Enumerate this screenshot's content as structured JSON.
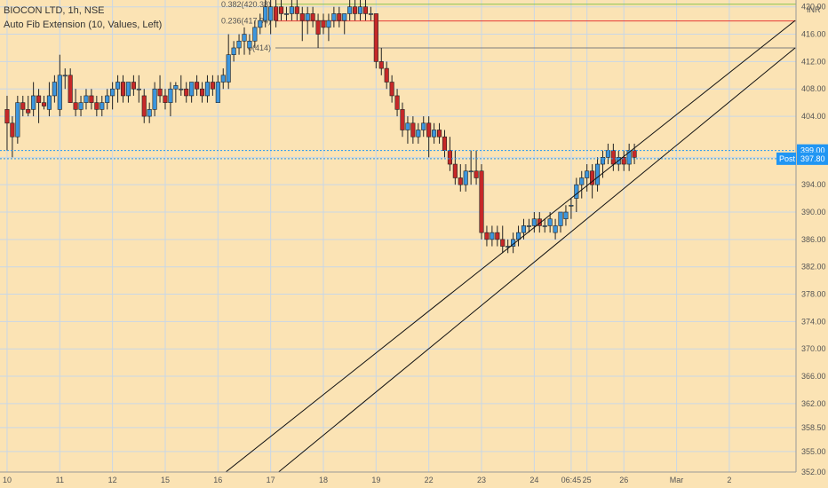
{
  "header": {
    "symbol_line": "BIOCON LTD, 1h, NSE",
    "indicator_line": "Auto Fib Extension (10, Values, Left)"
  },
  "currency": "INR",
  "colors": {
    "background": "#fbe3b4",
    "up": "#3d96dd",
    "down": "#c62828",
    "grid": "#c9d7e6",
    "fib_0382": "#8bc34a",
    "fib_0236": "#e53935",
    "fib_0": "#7d7d7d",
    "tag_blue": "#2196f3",
    "trendline": "#111111"
  },
  "fib_levels": [
    {
      "label": "0.382(420.38)",
      "value": 420.38,
      "color": "#8bc34a"
    },
    {
      "label": "0.236(417.94)",
      "value": 417.94,
      "color": "#e53935"
    },
    {
      "label": "0(414)",
      "value": 414.0,
      "color": "#7d7d7d"
    }
  ],
  "price_tags": [
    {
      "label": "399.00",
      "prefix": "",
      "value": 399.0
    },
    {
      "label": "397.80",
      "prefix": "Post",
      "value": 397.8
    }
  ],
  "chart_data": {
    "type": "candlestick",
    "ylim": [
      352,
      421
    ],
    "y_ticks": [
      352,
      355,
      358.5,
      362,
      366,
      370,
      374,
      378,
      382,
      386,
      390,
      394,
      398,
      404,
      408,
      412,
      416,
      420
    ],
    "y_tick_labels": [
      "352.00",
      "355.00",
      "358.50",
      "362.00",
      "366.00",
      "370.00",
      "374.00",
      "378.00",
      "382.00",
      "386.00",
      "390.00",
      "394.00",
      "398.00",
      "404.00",
      "408.00",
      "412.00",
      "416.00",
      "420.00"
    ],
    "x_tick_labels": [
      "10",
      "11",
      "12",
      "15",
      "16",
      "17",
      "18",
      "19",
      "22",
      "23",
      "24",
      "06:45",
      "25",
      "26",
      "Mar",
      "2"
    ],
    "x_tick_slots": [
      0.5,
      10.5,
      20.5,
      30.5,
      40.5,
      50.5,
      60.5,
      70.5,
      80.5,
      90.5,
      100.5,
      107.5,
      110.5,
      117.5,
      127.5,
      137.5
    ],
    "slot_count": 151,
    "candles": [
      [
        0,
        405,
        407,
        399,
        403
      ],
      [
        1,
        403,
        404,
        398,
        401
      ],
      [
        2,
        401,
        407,
        400,
        406
      ],
      [
        3,
        406,
        407,
        404,
        405
      ],
      [
        4,
        405,
        407,
        404,
        404.5
      ],
      [
        5,
        405,
        409,
        404,
        407
      ],
      [
        6,
        407,
        408,
        403,
        406
      ],
      [
        7,
        406,
        407,
        405,
        405.5
      ],
      [
        8,
        405,
        409,
        404,
        407
      ],
      [
        9,
        407,
        410,
        406,
        409
      ],
      [
        10,
        405,
        413,
        404,
        410
      ],
      [
        11,
        410,
        411,
        408,
        410
      ],
      [
        12,
        410,
        411,
        406,
        406
      ],
      [
        13,
        406,
        408,
        404,
        405
      ],
      [
        14,
        405,
        407,
        404,
        406
      ],
      [
        15,
        406,
        408,
        405,
        407
      ],
      [
        16,
        407,
        408,
        405,
        406
      ],
      [
        17,
        406,
        407,
        404,
        405
      ],
      [
        18,
        405,
        407,
        404,
        406
      ],
      [
        19,
        406,
        408,
        405,
        407
      ],
      [
        20,
        407,
        409,
        405,
        408
      ],
      [
        21,
        408,
        410,
        406,
        409
      ],
      [
        22,
        409,
        410,
        406,
        407
      ],
      [
        23,
        407,
        409,
        406,
        409
      ],
      [
        24,
        409,
        410,
        407,
        408
      ],
      [
        25,
        408,
        410,
        406,
        408
      ],
      [
        26,
        407,
        408,
        403,
        404
      ],
      [
        27,
        404,
        406,
        403,
        405
      ],
      [
        28,
        405,
        409,
        404,
        408
      ],
      [
        29,
        408,
        410,
        406,
        407
      ],
      [
        30,
        407,
        408,
        405,
        406
      ],
      [
        31,
        406,
        409,
        404,
        408
      ],
      [
        32,
        408,
        409,
        406,
        408.5
      ],
      [
        33,
        408,
        410,
        407,
        408
      ],
      [
        34,
        408,
        409,
        406,
        407
      ],
      [
        35,
        407,
        409,
        406,
        409
      ],
      [
        36,
        409,
        410,
        407,
        408
      ],
      [
        37,
        408,
        409,
        406,
        407
      ],
      [
        38,
        407,
        410,
        406,
        409
      ],
      [
        39,
        409,
        410,
        407,
        408
      ],
      [
        40,
        406,
        410,
        406,
        409
      ],
      [
        41,
        409,
        411,
        408,
        410
      ],
      [
        42,
        409,
        416,
        408,
        413
      ],
      [
        43,
        413,
        415,
        412,
        414
      ],
      [
        44,
        414,
        416,
        413,
        415
      ],
      [
        45,
        415,
        417,
        413,
        416
      ],
      [
        46,
        414,
        416,
        413,
        415
      ],
      [
        47,
        415,
        418,
        414,
        417
      ],
      [
        48,
        417,
        419,
        416,
        418
      ],
      [
        49,
        418,
        421,
        417,
        420
      ],
      [
        50,
        418,
        421,
        416,
        420
      ],
      [
        51,
        420,
        421,
        417,
        418
      ],
      [
        52,
        420,
        421,
        418,
        419
      ],
      [
        53,
        419,
        420,
        418,
        419
      ],
      [
        54,
        419,
        421,
        418,
        420
      ],
      [
        55,
        420,
        421,
        418,
        419
      ],
      [
        56,
        419,
        420,
        415,
        418
      ],
      [
        57,
        418,
        420,
        416,
        419
      ],
      [
        58,
        419,
        420,
        417,
        418
      ],
      [
        59,
        418,
        419,
        414,
        416
      ],
      [
        60,
        418,
        419,
        416,
        417
      ],
      [
        61,
        417,
        419,
        415,
        418
      ],
      [
        62,
        418,
        420,
        417,
        419
      ],
      [
        63,
        419,
        420,
        417,
        418
      ],
      [
        64,
        418,
        419,
        416,
        419
      ],
      [
        65,
        419,
        421,
        418,
        420
      ],
      [
        66,
        420,
        421,
        418,
        419
      ],
      [
        67,
        419,
        421,
        418,
        420
      ],
      [
        68,
        420,
        421,
        418,
        419
      ],
      [
        69,
        419,
        420,
        418,
        419
      ],
      [
        70,
        419,
        419,
        411,
        412
      ],
      [
        71,
        412,
        414,
        410,
        411
      ],
      [
        72,
        411,
        412,
        408,
        409
      ],
      [
        73,
        409,
        410,
        406,
        407
      ],
      [
        74,
        407,
        408,
        404,
        405
      ],
      [
        75,
        405,
        406,
        401,
        402
      ],
      [
        76,
        402,
        404,
        400,
        403
      ],
      [
        77,
        403,
        404,
        400,
        401
      ],
      [
        78,
        401,
        403,
        400,
        402
      ],
      [
        79,
        402,
        404,
        401,
        403
      ],
      [
        80,
        403,
        404,
        398,
        401
      ],
      [
        81,
        401,
        403,
        400,
        402
      ],
      [
        82,
        402,
        403,
        400,
        401
      ],
      [
        83,
        401,
        402,
        398,
        399
      ],
      [
        84,
        399,
        401,
        396,
        397
      ],
      [
        85,
        397,
        399,
        394,
        395
      ],
      [
        86,
        395,
        397,
        393,
        394
      ],
      [
        87,
        394,
        397,
        393,
        396
      ],
      [
        88,
        396,
        399,
        394,
        396
      ],
      [
        89,
        396,
        399,
        394,
        395
      ],
      [
        90,
        396,
        397,
        386,
        387
      ],
      [
        91,
        387,
        388,
        385,
        386
      ],
      [
        92,
        386,
        388,
        385,
        387
      ],
      [
        93,
        387,
        388,
        385,
        386
      ],
      [
        94,
        386,
        388,
        384,
        385
      ],
      [
        95,
        385,
        386,
        384,
        385
      ],
      [
        96,
        385,
        387,
        384,
        386
      ],
      [
        97,
        386,
        388,
        385,
        387
      ],
      [
        98,
        387,
        389,
        386,
        388
      ],
      [
        99,
        388,
        389,
        387,
        388
      ],
      [
        100,
        388,
        390,
        387,
        389
      ],
      [
        101,
        389,
        390,
        387,
        388
      ],
      [
        102,
        388,
        389,
        387,
        388
      ],
      [
        103,
        388,
        390,
        387,
        389
      ],
      [
        104,
        387,
        389,
        386,
        388
      ],
      [
        105,
        388,
        390,
        387,
        390
      ],
      [
        106,
        389,
        391,
        388,
        390
      ],
      [
        107,
        391,
        392,
        389,
        391
      ],
      [
        108,
        392,
        395,
        390,
        394
      ],
      [
        109,
        394,
        396,
        392,
        395
      ],
      [
        110,
        395,
        397,
        393,
        396
      ],
      [
        111,
        396,
        397,
        392,
        394
      ],
      [
        112,
        394,
        398,
        393,
        397
      ],
      [
        113,
        397,
        399,
        395,
        398
      ],
      [
        114,
        398,
        400,
        397,
        399
      ],
      [
        115,
        399,
        400,
        396,
        397
      ],
      [
        116,
        397,
        399,
        396,
        398
      ],
      [
        117,
        398,
        399,
        396,
        397
      ],
      [
        118,
        397,
        400,
        396,
        399
      ],
      [
        119,
        399,
        400,
        397,
        398
      ]
    ],
    "channel_lines": [
      {
        "p1": [
          42,
          352
        ],
        "p2": [
          150,
          418
        ]
      },
      {
        "p1": [
          52,
          352
        ],
        "p2": [
          150,
          414
        ]
      }
    ]
  }
}
